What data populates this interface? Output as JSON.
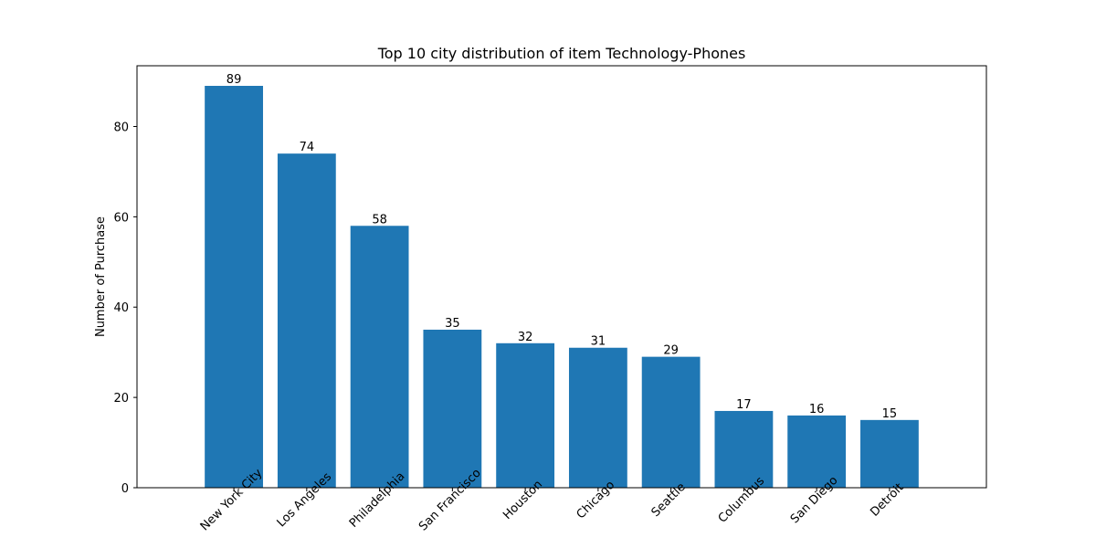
{
  "chart_data": {
    "type": "bar",
    "title": "Top 10 city distribution of item Technology-Phones",
    "xlabel": "",
    "ylabel": "Number of Purchase",
    "categories": [
      "New York City",
      "Los Angeles",
      "Philadelphia",
      "San Francisco",
      "Houston",
      "Chicago",
      "Seattle",
      "Columbus",
      "San Diego",
      "Detroit"
    ],
    "values": [
      89,
      74,
      58,
      35,
      32,
      31,
      29,
      17,
      16,
      15
    ],
    "ylim": [
      0,
      93.45
    ],
    "yticks": [
      0,
      20,
      40,
      60,
      80
    ],
    "grid": false,
    "bar_color": "#1f77b4",
    "x_tick_rotation": 45
  }
}
